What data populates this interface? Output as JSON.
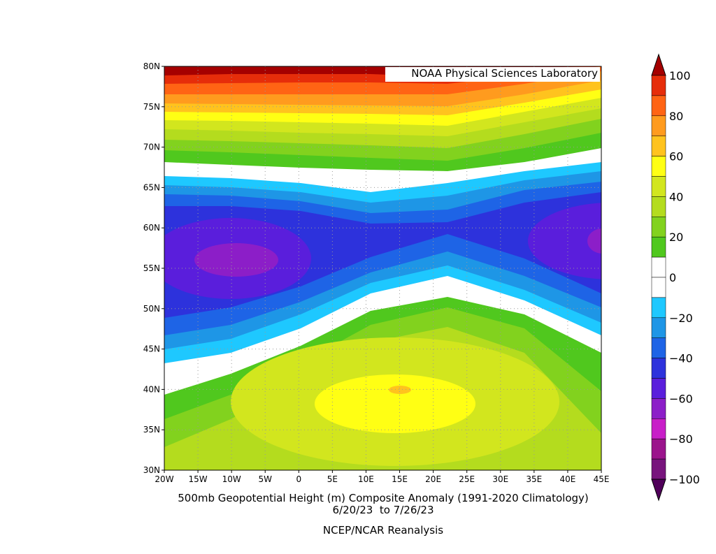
{
  "credit": "NOAA Physical Sciences Laboratory",
  "title": "500mb Geopotential Height (m) Composite Anomaly (1991-2020 Climatology)",
  "subtitle": "6/20/23  to 7/26/23",
  "source": "NCEP/NCAR Reanalysis",
  "x_axis": {
    "labels": [
      "20W",
      "15W",
      "10W",
      "5W",
      "0",
      "5E",
      "10E",
      "15E",
      "20E",
      "25E",
      "30E",
      "35E",
      "40E",
      "45E"
    ]
  },
  "y_axis": {
    "labels": [
      "80N",
      "75N",
      "70N",
      "65N",
      "60N",
      "55N",
      "50N",
      "45N",
      "40N",
      "35N",
      "30N"
    ]
  },
  "colorbar": {
    "labels": [
      "100",
      "80",
      "60",
      "40",
      "20",
      "0",
      "−20",
      "−40",
      "−60",
      "−80",
      "−100"
    ]
  }
}
